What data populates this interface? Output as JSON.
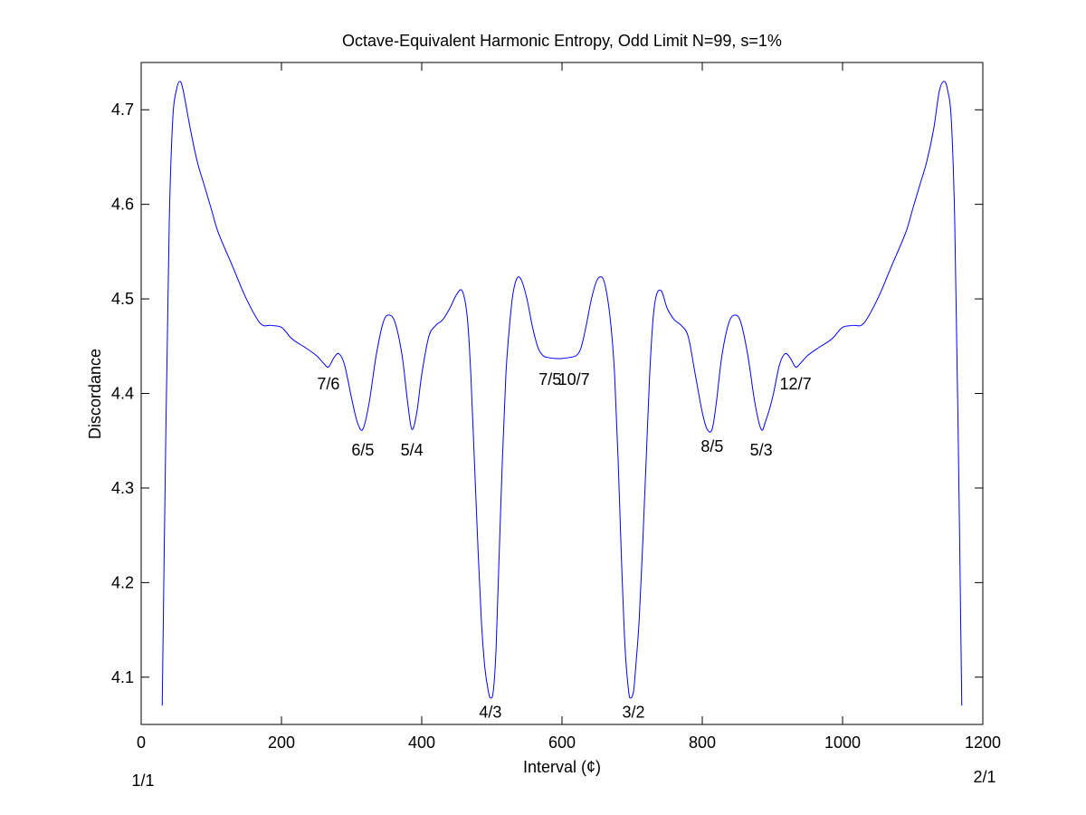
{
  "chart_data": {
    "type": "line",
    "title": "Octave-Equivalent Harmonic Entropy, Odd Limit N=99, s=1%",
    "xlabel": "Interval (¢)",
    "ylabel": "Discordance",
    "xlim": [
      0,
      1200
    ],
    "ylim": [
      4.05,
      4.75
    ],
    "xticks": [
      0,
      200,
      400,
      600,
      800,
      1000,
      1200
    ],
    "yticks": [
      4.1,
      4.2,
      4.3,
      4.4,
      4.5,
      4.6,
      4.7
    ],
    "grid": false,
    "legend": "none",
    "line_color": "#0000ff",
    "edge_labels": {
      "left": "1/1",
      "right": "2/1"
    },
    "annotations": [
      {
        "text": "7/6",
        "x": 267,
        "y": 4.41
      },
      {
        "text": "6/5",
        "x": 316,
        "y": 4.34
      },
      {
        "text": "5/4",
        "x": 386,
        "y": 4.34
      },
      {
        "text": "4/3",
        "x": 498,
        "y": 4.063
      },
      {
        "text": "7/5",
        "x": 583,
        "y": 4.415
      },
      {
        "text": "10/7",
        "x": 617,
        "y": 4.415
      },
      {
        "text": "3/2",
        "x": 702,
        "y": 4.063
      },
      {
        "text": "8/5",
        "x": 814,
        "y": 4.344
      },
      {
        "text": "5/3",
        "x": 884,
        "y": 4.34
      },
      {
        "text": "12/7",
        "x": 933,
        "y": 4.41
      }
    ],
    "series": [
      {
        "color": "#0000ff",
        "x": [
          30,
          35,
          40,
          45,
          50,
          55,
          60,
          70,
          80,
          90,
          100,
          110,
          130,
          150,
          170,
          185,
          200,
          212,
          220,
          235,
          250,
          260,
          267,
          275,
          282,
          290,
          300,
          308,
          316,
          325,
          335,
          345,
          353,
          362,
          372,
          380,
          386,
          393,
          400,
          410,
          420,
          430,
          440,
          450,
          458,
          465,
          470,
          475,
          480,
          485,
          490,
          495,
          498,
          502,
          506,
          510,
          515,
          520,
          525,
          530,
          536,
          542,
          550,
          558,
          566,
          573,
          580,
          590,
          600,
          610,
          620,
          627,
          634,
          642,
          650,
          658,
          664,
          670,
          675,
          680,
          685,
          690,
          695,
          698,
          702,
          705,
          710,
          715,
          720,
          725,
          730,
          735,
          742,
          750,
          760,
          770,
          780,
          790,
          800,
          807,
          814,
          820,
          828,
          838,
          847,
          855,
          865,
          875,
          884,
          890,
          900,
          910,
          918,
          925,
          933,
          940,
          950,
          965,
          980,
          988,
          1000,
          1015,
          1030,
          1050,
          1070,
          1090,
          1100,
          1110,
          1120,
          1130,
          1138,
          1145,
          1150,
          1155,
          1160,
          1165,
          1170
        ],
        "y": [
          4.07,
          4.35,
          4.58,
          4.69,
          4.72,
          4.73,
          4.72,
          4.68,
          4.645,
          4.62,
          4.595,
          4.57,
          4.535,
          4.5,
          4.474,
          4.472,
          4.47,
          4.46,
          4.455,
          4.448,
          4.44,
          4.432,
          4.428,
          4.438,
          4.442,
          4.43,
          4.395,
          4.37,
          4.362,
          4.39,
          4.44,
          4.475,
          4.483,
          4.475,
          4.44,
          4.39,
          4.362,
          4.38,
          4.42,
          4.46,
          4.472,
          4.478,
          4.49,
          4.505,
          4.508,
          4.48,
          4.42,
          4.33,
          4.24,
          4.16,
          4.11,
          4.085,
          4.078,
          4.085,
          4.13,
          4.22,
          4.33,
          4.42,
          4.47,
          4.505,
          4.522,
          4.52,
          4.5,
          4.47,
          4.448,
          4.44,
          4.438,
          4.437,
          4.437,
          4.438,
          4.44,
          4.448,
          4.47,
          4.5,
          4.52,
          4.522,
          4.505,
          4.47,
          4.42,
          4.33,
          4.22,
          4.13,
          4.085,
          4.078,
          4.085,
          4.11,
          4.16,
          4.24,
          4.33,
          4.42,
          4.48,
          4.505,
          4.508,
          4.49,
          4.478,
          4.472,
          4.46,
          4.42,
          4.38,
          4.362,
          4.362,
          4.39,
          4.44,
          4.475,
          4.483,
          4.475,
          4.44,
          4.39,
          4.362,
          4.37,
          4.395,
          4.43,
          4.442,
          4.438,
          4.428,
          4.432,
          4.44,
          4.448,
          4.455,
          4.46,
          4.47,
          4.472,
          4.474,
          4.5,
          4.535,
          4.57,
          4.595,
          4.62,
          4.645,
          4.68,
          4.72,
          4.73,
          4.72,
          4.69,
          4.58,
          4.35,
          4.07
        ]
      }
    ]
  }
}
